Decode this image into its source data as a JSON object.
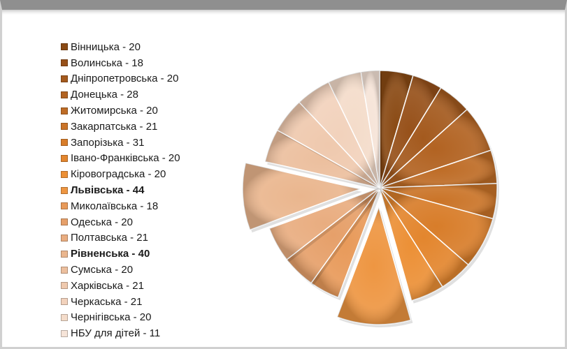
{
  "chart_data": {
    "type": "pie",
    "title": "",
    "exploded": [
      "Львівська",
      "Рівненська"
    ],
    "bold": [
      "Львівська",
      "Рівненська"
    ],
    "categories": [
      "Вінницька",
      "Волинська",
      "Дніпропетровська",
      "Донецька",
      "Житомирська",
      "Закарпатська",
      "Запорізька",
      "Івано-Франківська",
      "Кіровоградська",
      "Львівська",
      "Миколаївська",
      "Одеська",
      "Полтавська",
      "Рівненська",
      "Сумська",
      "Харківська",
      "Черкаська",
      "Чернігівська",
      "НБУ для дітей"
    ],
    "values": [
      20,
      18,
      20,
      28,
      20,
      21,
      31,
      20,
      20,
      44,
      18,
      20,
      21,
      40,
      20,
      21,
      21,
      20,
      11
    ],
    "legend_labels": [
      "Вінницька - 20",
      "Волинська - 18",
      "Дніпропетровська - 20",
      "Донецька  - 28",
      "Житомирська - 20",
      "Закарпатська - 21",
      "Запорізька - 31",
      "Івано-Франківська - 20",
      "Кіровоградська - 20",
      "Львівська   - 44",
      "Миколаївська - 18",
      "Одеська - 20",
      "Полтавська - 21",
      "Рівненська  - 40",
      "Сумська - 20",
      "Харківська - 21",
      "Черкаська - 21",
      "Чернігівська - 20",
      "НБУ для дітей - 11"
    ],
    "colors": [
      "#8a4a14",
      "#97511a",
      "#a45a1e",
      "#b26322",
      "#be6c26",
      "#ca7428",
      "#d87d2a",
      "#e3862e",
      "#ec9036",
      "#ee9642",
      "#e89a5a",
      "#e6a06a",
      "#e9ad80",
      "#eab68e",
      "#ecbf9e",
      "#efc9ae",
      "#f2d2bc",
      "#f4dcca",
      "#f6e4d8"
    ],
    "legend_position": "left"
  }
}
